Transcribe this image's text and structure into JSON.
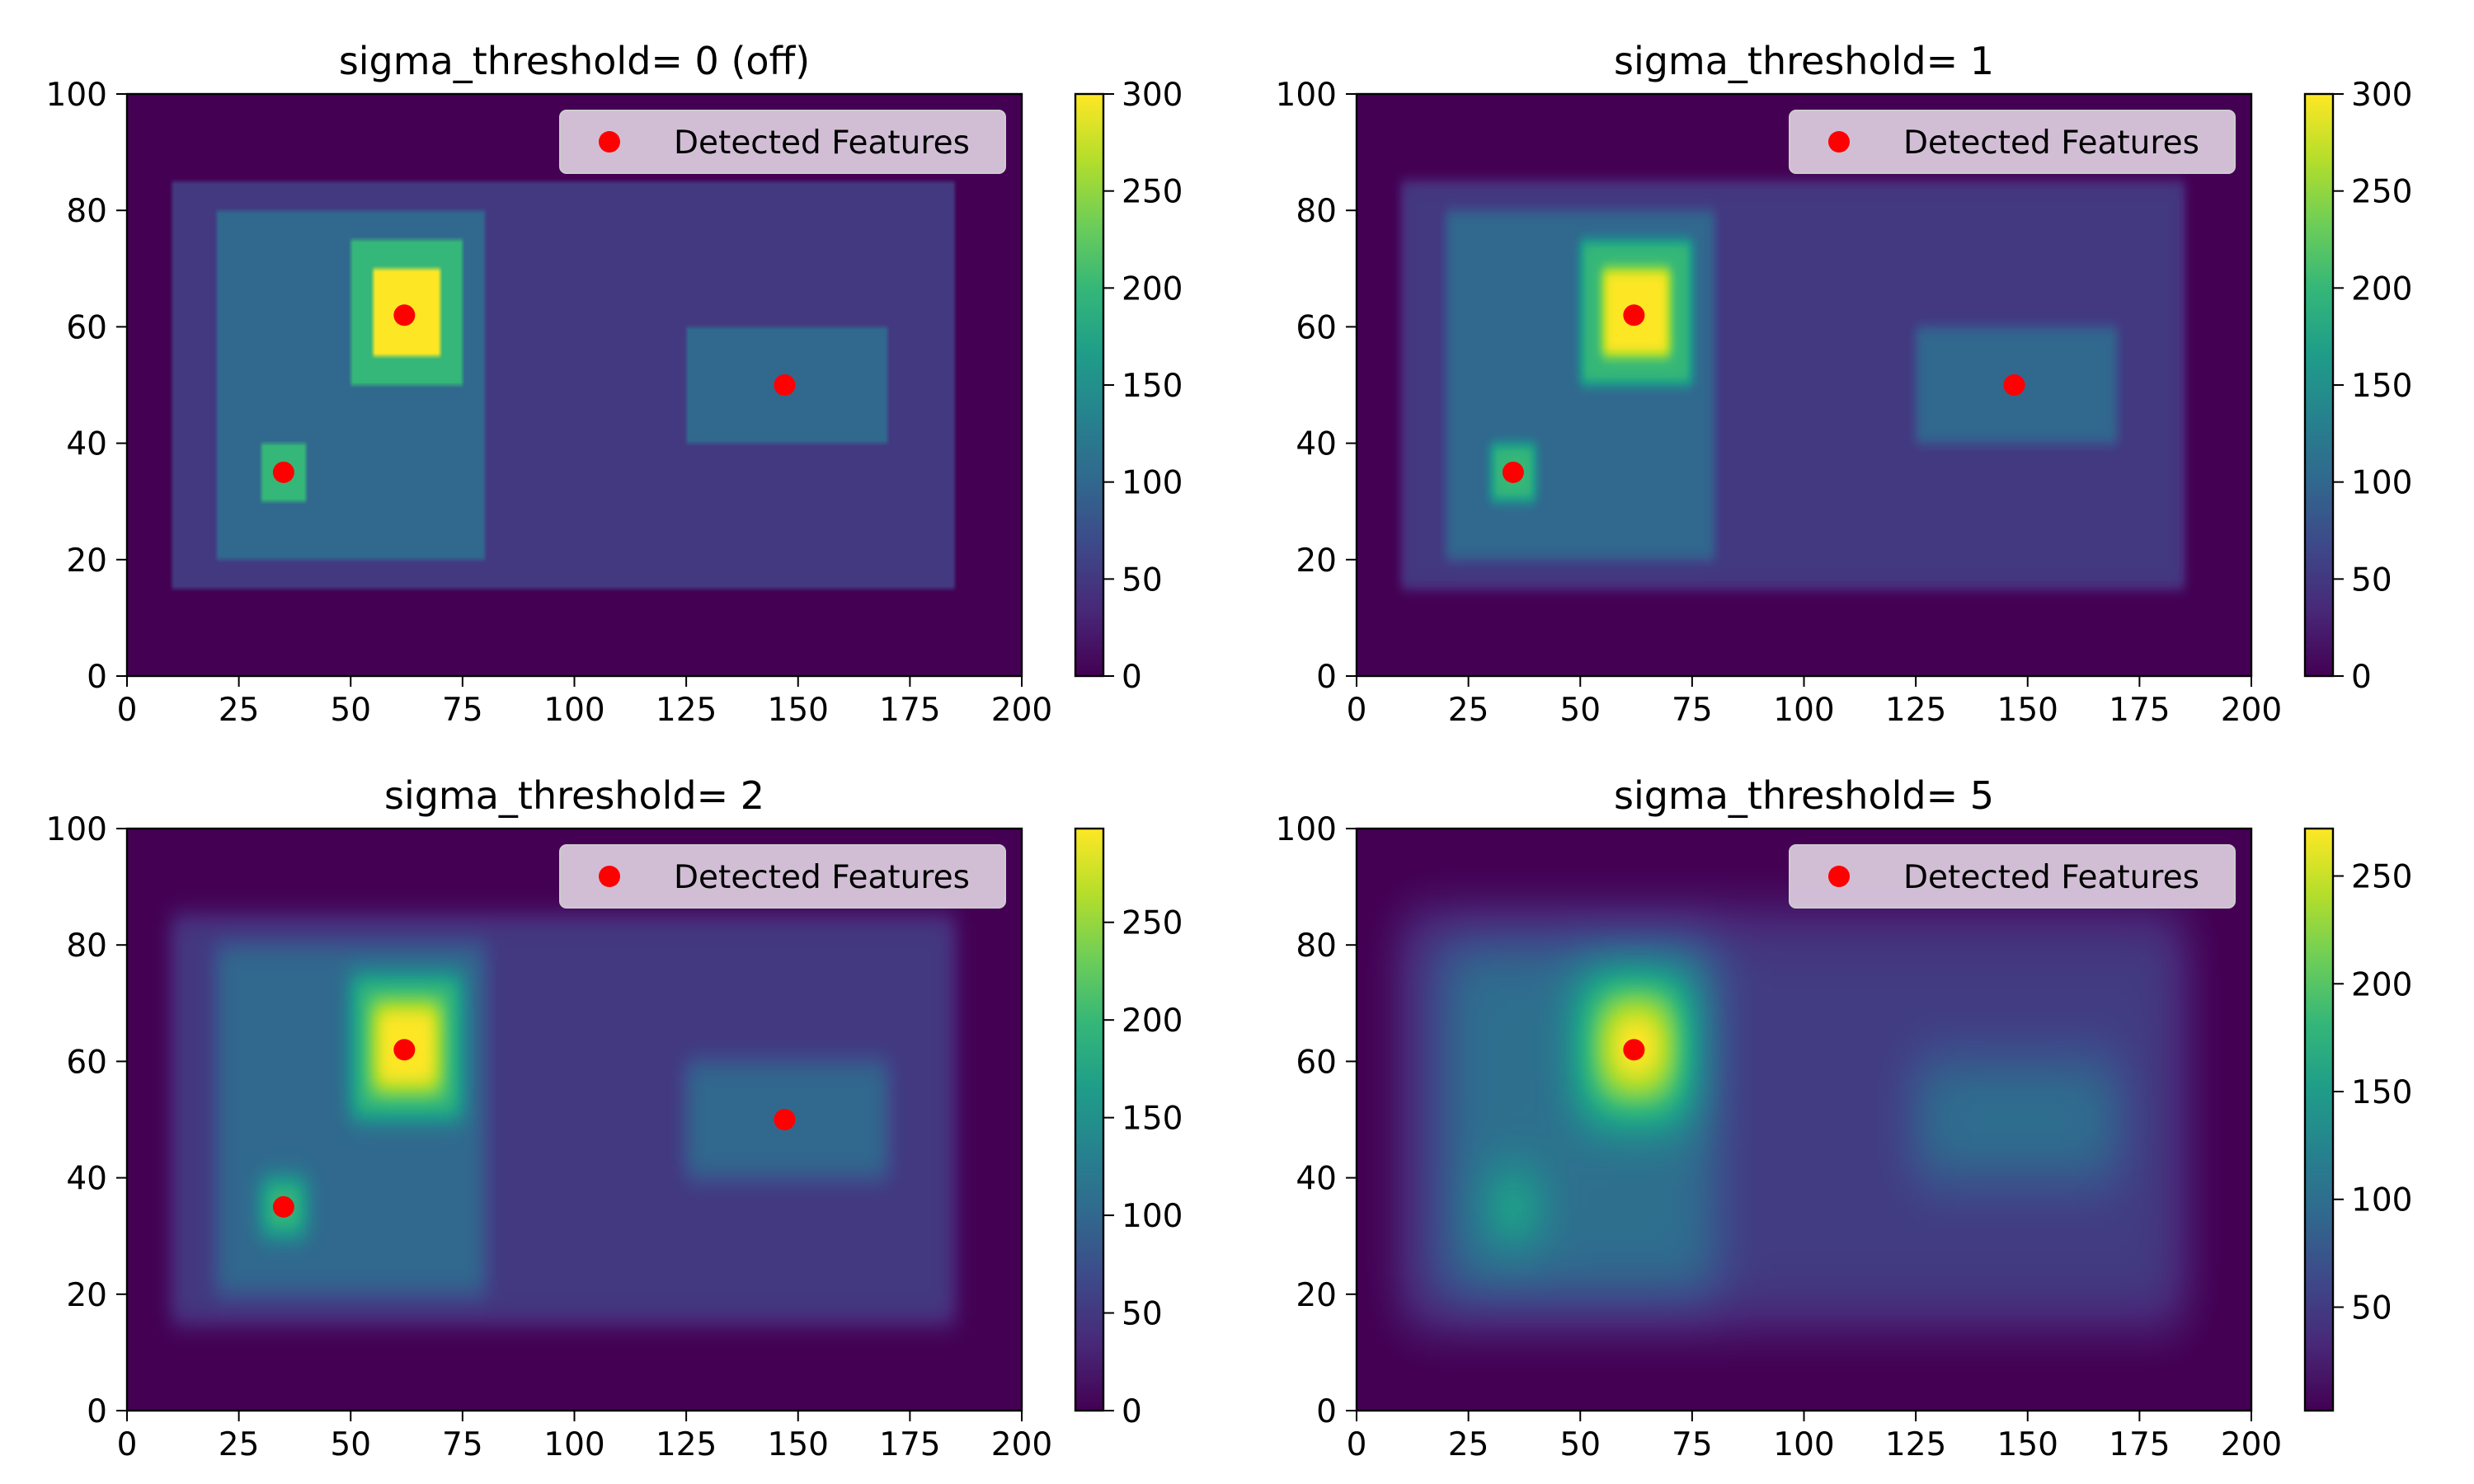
{
  "colors": {
    "viridis": [
      "#440154",
      "#482878",
      "#3e4989",
      "#31688e",
      "#26828e",
      "#1f9e89",
      "#35b779",
      "#6ece58",
      "#b5de2b",
      "#fde725"
    ],
    "feature_marker": "#ff0000",
    "legend_background": "#d9c8dc"
  },
  "chart_data": [
    {
      "type": "heatmap",
      "title": "sigma_threshold= 0 (off)",
      "sigma": 0,
      "xlim": [
        0,
        200
      ],
      "ylim": [
        0,
        100
      ],
      "x_ticks": [
        0,
        25,
        50,
        75,
        100,
        125,
        150,
        175,
        200
      ],
      "y_ticks": [
        0,
        20,
        40,
        60,
        80,
        100
      ],
      "colorbar": {
        "min": 0,
        "max": 300,
        "ticks": [
          0,
          50,
          100,
          150,
          200,
          250,
          300
        ]
      },
      "legend": {
        "label": "Detected Features",
        "position": "upper right"
      },
      "features": [
        [
          62,
          62
        ],
        [
          35,
          35
        ],
        [
          147,
          50
        ]
      ]
    },
    {
      "type": "heatmap",
      "title": "sigma_threshold= 1",
      "sigma": 1,
      "xlim": [
        0,
        200
      ],
      "ylim": [
        0,
        100
      ],
      "x_ticks": [
        0,
        25,
        50,
        75,
        100,
        125,
        150,
        175,
        200
      ],
      "y_ticks": [
        0,
        20,
        40,
        60,
        80,
        100
      ],
      "colorbar": {
        "min": 0,
        "max": 300,
        "ticks": [
          0,
          50,
          100,
          150,
          200,
          250,
          300
        ]
      },
      "legend": {
        "label": "Detected Features",
        "position": "upper right"
      },
      "features": [
        [
          62,
          62
        ],
        [
          35,
          35
        ],
        [
          147,
          50
        ]
      ]
    },
    {
      "type": "heatmap",
      "title": "sigma_threshold= 2",
      "sigma": 2,
      "xlim": [
        0,
        200
      ],
      "ylim": [
        0,
        100
      ],
      "x_ticks": [
        0,
        25,
        50,
        75,
        100,
        125,
        150,
        175,
        200
      ],
      "y_ticks": [
        0,
        20,
        40,
        60,
        80,
        100
      ],
      "colorbar": {
        "min": 0,
        "max": 298,
        "ticks": [
          0,
          50,
          100,
          150,
          200,
          250
        ]
      },
      "legend": {
        "label": "Detected Features",
        "position": "upper right"
      },
      "features": [
        [
          62,
          62
        ],
        [
          35,
          35
        ],
        [
          147,
          50
        ]
      ]
    },
    {
      "type": "heatmap",
      "title": "sigma_threshold= 5",
      "sigma": 5,
      "xlim": [
        0,
        200
      ],
      "ylim": [
        0,
        100
      ],
      "x_ticks": [
        0,
        25,
        50,
        75,
        100,
        125,
        150,
        175,
        200
      ],
      "y_ticks": [
        0,
        20,
        40,
        60,
        80,
        100
      ],
      "colorbar": {
        "min": 2,
        "max": 272,
        "ticks": [
          50,
          100,
          150,
          200,
          250
        ]
      },
      "legend": {
        "label": "Detected Features",
        "position": "upper right"
      },
      "features": [
        [
          62,
          62
        ]
      ]
    }
  ]
}
